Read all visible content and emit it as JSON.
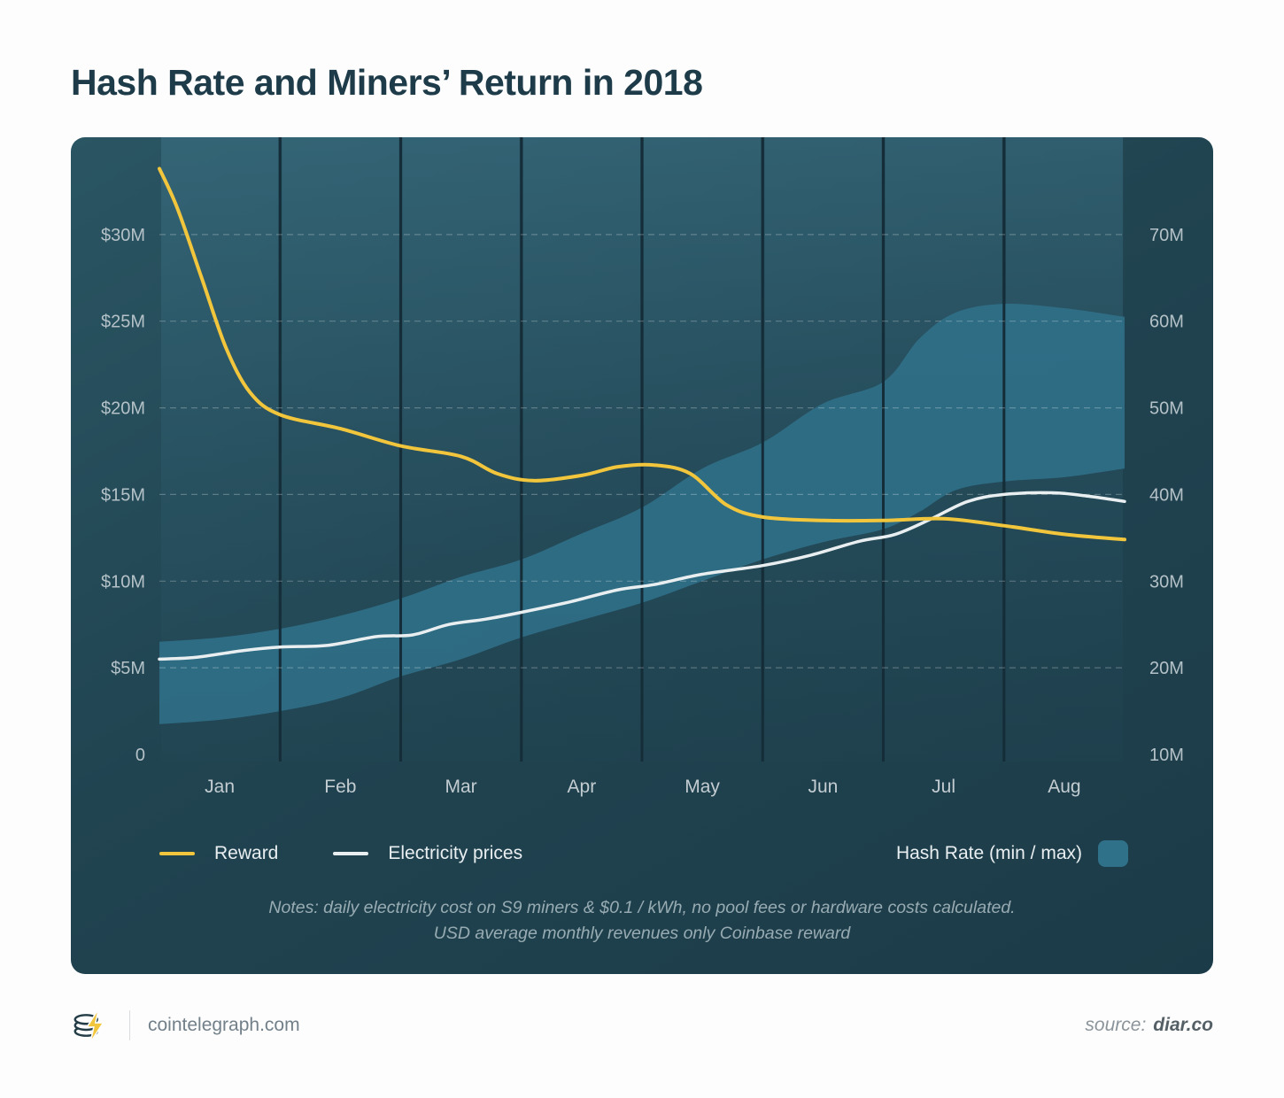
{
  "title": "Hash Rate and Miners’ Return in 2018",
  "legend": {
    "reward": "Reward",
    "electricity": "Electricity prices",
    "hashrate": "Hash Rate (min / max)"
  },
  "notes": {
    "line1": "Notes: daily electricity cost on S9 miners & $0.1 / kWh, no pool fees or hardware costs calculated.",
    "line2": "USD average monthly revenues only Coinbase reward"
  },
  "footer": {
    "brand": "cointelegraph.com",
    "source_label": "source:",
    "source_value": "diar.co"
  },
  "icons": {
    "logo": "coin-stack-lightning-icon"
  },
  "colors": {
    "page_bg": "#fdfdfd",
    "title_text": "#1d3b49",
    "panel_bg": "#1f414f",
    "reward_line": "#f2c63c",
    "electricity_line": "#e9eff1",
    "hashrate_band": "#30718a",
    "axis_text": "#b4c2c8"
  },
  "chart_data": {
    "type": "area",
    "title": "Hash Rate and Miners’ Return in 2018",
    "categories": [
      "Jan",
      "Feb",
      "Mar",
      "Apr",
      "May",
      "Jun",
      "Jul",
      "Aug"
    ],
    "x_unit": "months (0 = start of Jan, 8 = end of Aug)",
    "left_axis": {
      "tick_labels": [
        "$30M",
        "$25M",
        "$20M",
        "$15M",
        "$10M",
        "$5M",
        "0"
      ],
      "tick_values": [
        30,
        25,
        20,
        15,
        10,
        5,
        0
      ],
      "min": 0,
      "max": 35
    },
    "right_axis": {
      "tick_labels": [
        "70M",
        "60M",
        "50M",
        "40M",
        "30M",
        "20M",
        "10M"
      ],
      "tick_values": [
        70,
        60,
        50,
        40,
        30,
        20,
        10
      ],
      "min": 10,
      "max": 80
    },
    "grid": {
      "horizontal_dashed": true,
      "vertical_month_lines": true,
      "legend_position": "bottom"
    },
    "series": [
      {
        "name": "Reward",
        "type": "line",
        "axis": "left",
        "color": "#f2c63c",
        "x": [
          0,
          0.15,
          0.35,
          0.55,
          0.75,
          1,
          1.5,
          2,
          2.5,
          2.8,
          3.1,
          3.5,
          3.8,
          4.1,
          4.4,
          4.7,
          5,
          5.5,
          6,
          6.5,
          7,
          7.5,
          8
        ],
        "values": [
          33.8,
          31.5,
          27.5,
          23.5,
          20.9,
          19.6,
          18.8,
          17.8,
          17.2,
          16.2,
          15.8,
          16.1,
          16.6,
          16.7,
          16.2,
          14.4,
          13.7,
          13.5,
          13.5,
          13.6,
          13.2,
          12.7,
          12.4
        ]
      },
      {
        "name": "Electricity prices",
        "type": "line",
        "axis": "left",
        "color": "#e9eff1",
        "x": [
          0,
          0.3,
          0.7,
          1,
          1.4,
          1.8,
          2.1,
          2.4,
          2.7,
          3,
          3.4,
          3.8,
          4.1,
          4.5,
          5,
          5.4,
          5.8,
          6.1,
          6.4,
          6.7,
          7,
          7.4,
          7.7,
          8
        ],
        "values": [
          5.5,
          5.6,
          6.0,
          6.2,
          6.3,
          6.8,
          6.9,
          7.5,
          7.8,
          8.2,
          8.8,
          9.5,
          9.8,
          10.4,
          10.9,
          11.5,
          12.3,
          12.7,
          13.6,
          14.6,
          15.0,
          15.1,
          14.9,
          14.6
        ]
      },
      {
        "name": "Hash Rate (min / max)",
        "type": "band",
        "axis": "right",
        "color": "#30718a",
        "x": [
          0,
          0.5,
          1,
          1.5,
          2,
          2.5,
          3,
          3.5,
          4,
          4.5,
          5,
          5.5,
          6,
          6.3,
          6.6,
          7,
          7.5,
          8
        ],
        "min": [
          13.5,
          14,
          15,
          16.5,
          19,
          21,
          23.5,
          25.5,
          27.5,
          30,
          32.5,
          34.5,
          36,
          38,
          40.5,
          41.5,
          42,
          43
        ],
        "max": [
          23,
          23.5,
          24.5,
          26,
          28,
          30.5,
          32.5,
          35.5,
          38.5,
          43,
          46,
          50.5,
          53,
          58,
          61,
          62,
          61.5,
          60.5
        ]
      }
    ]
  }
}
